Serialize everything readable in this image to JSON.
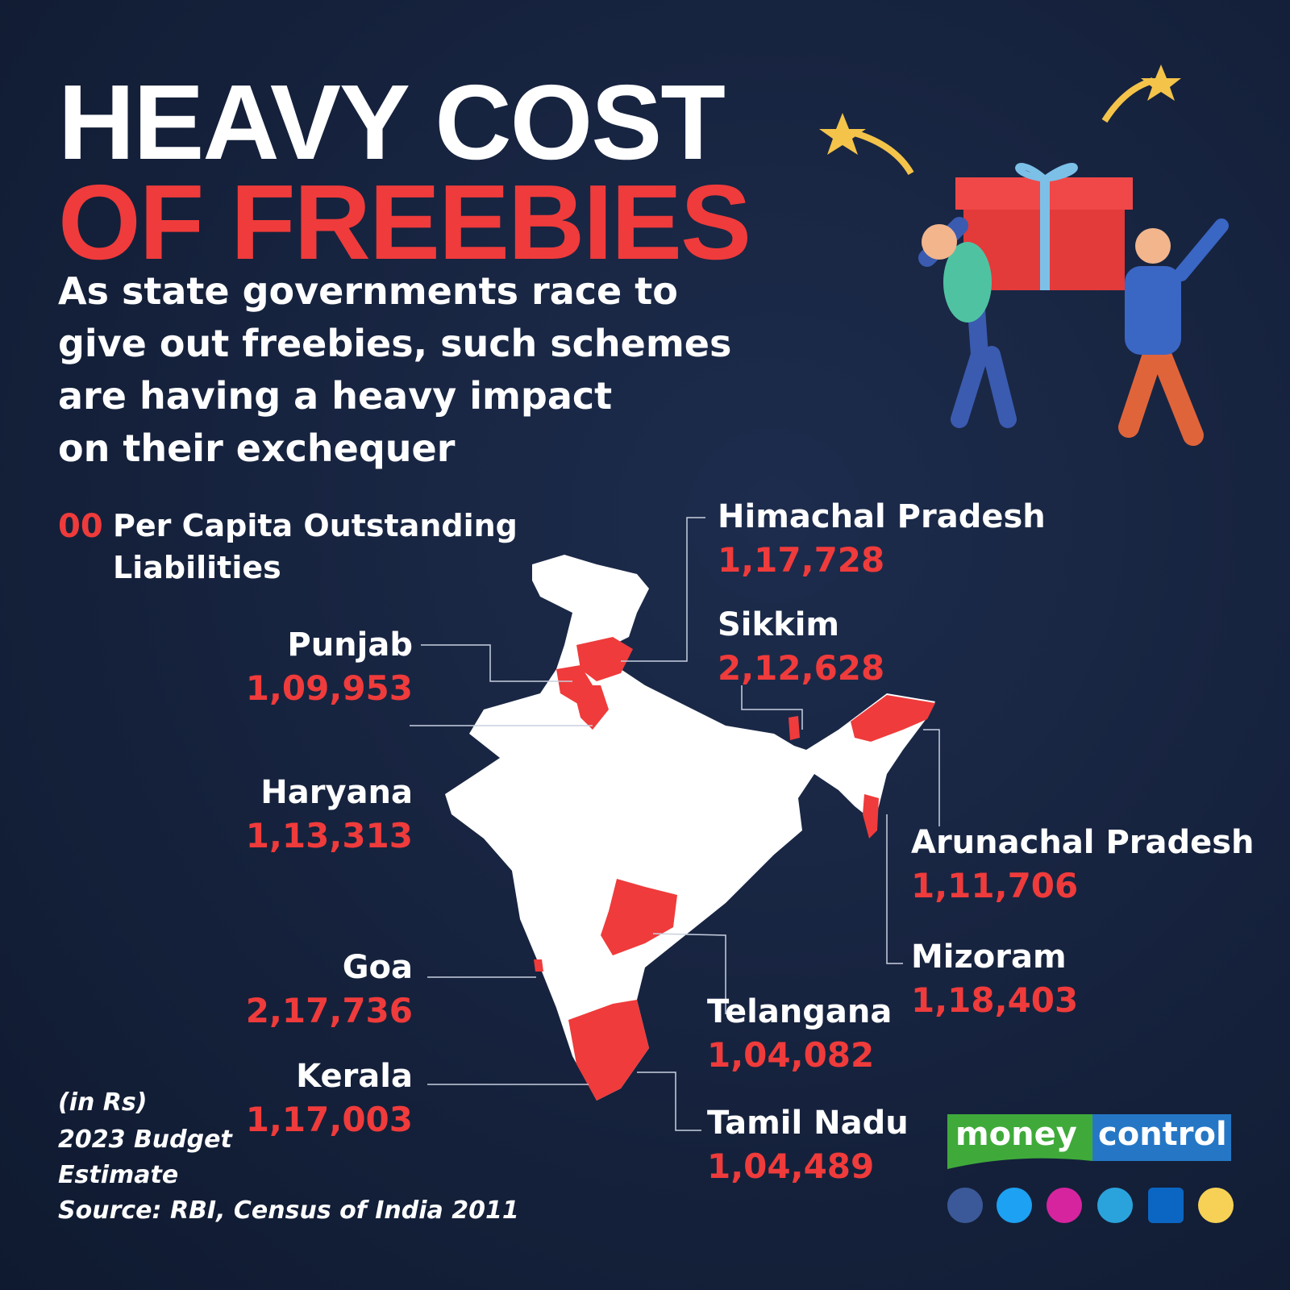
{
  "header": {
    "title_line1": "HEAVY COST",
    "title_line2": "OF FREEBIES",
    "subtitle_lines": [
      "As state governments race to",
      "give out freebies, such schemes",
      "are having a heavy impact",
      "on their exchequer"
    ]
  },
  "legend": {
    "marker": "00",
    "label_lines": [
      "Per Capita Outstanding",
      "Liabilities"
    ]
  },
  "states": [
    {
      "name": "Himachal Pradesh",
      "value": "1,17,728"
    },
    {
      "name": "Sikkim",
      "value": "2,12,628"
    },
    {
      "name": "Punjab",
      "value": "1,09,953"
    },
    {
      "name": "Haryana",
      "value": "1,13,313"
    },
    {
      "name": "Arunachal Pradesh",
      "value": "1,11,706"
    },
    {
      "name": "Mizoram",
      "value": "1,18,403"
    },
    {
      "name": "Goa",
      "value": "2,17,736"
    },
    {
      "name": "Telangana",
      "value": "1,04,082"
    },
    {
      "name": "Kerala",
      "value": "1,17,003"
    },
    {
      "name": "Tamil Nadu",
      "value": "1,04,489"
    }
  ],
  "footnote": {
    "unit": "(in Rs)",
    "basis_lines": [
      "2023 Budget",
      "Estimate"
    ],
    "source": "Source: RBI, Census of India 2011"
  },
  "brand": {
    "part1": "money",
    "part2": "control"
  }
}
